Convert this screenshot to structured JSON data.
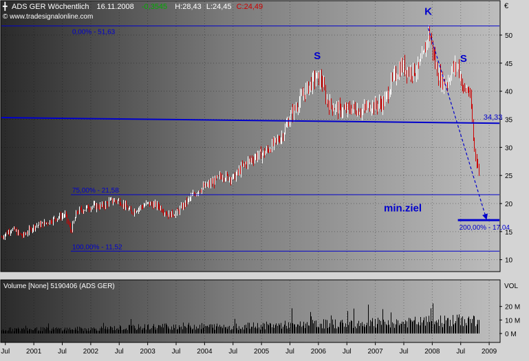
{
  "header": {
    "symbol": "ADS GER Wöchentlich",
    "date": "16.11.2008",
    "change": "-0,3545",
    "high": "H:28,43",
    "low": "L:24,45",
    "close": "C:24,49",
    "currency": "€",
    "source": "© www.tradesignalonline.com"
  },
  "colors": {
    "bull": "#ffffff",
    "bear": "#cc0000",
    "annotation": "#0000cc",
    "change": "#00aa00",
    "close": "#cc0000"
  },
  "chart_data": [
    {
      "type": "bar",
      "subtype": "ohlc-weekly",
      "ylim": [
        8,
        56
      ],
      "yticks": [
        10,
        15,
        20,
        25,
        30,
        35,
        40,
        45,
        50
      ],
      "ytick_labels": [
        "10",
        "15",
        "20",
        "25",
        "30",
        "35",
        "40",
        "45",
        "50"
      ],
      "xlim": [
        2000.43,
        2009.18
      ],
      "xticks": [
        {
          "x": 2000.5,
          "label": "Jul"
        },
        {
          "x": 2001.0,
          "label": "2001"
        },
        {
          "x": 2001.5,
          "label": "Jul"
        },
        {
          "x": 2002.0,
          "label": "2002"
        },
        {
          "x": 2002.5,
          "label": "Jul"
        },
        {
          "x": 2003.0,
          "label": "2003"
        },
        {
          "x": 2003.5,
          "label": "Jul"
        },
        {
          "x": 2004.0,
          "label": "2004"
        },
        {
          "x": 2004.5,
          "label": "Jul"
        },
        {
          "x": 2005.0,
          "label": "2005"
        },
        {
          "x": 2005.5,
          "label": "Jul"
        },
        {
          "x": 2006.0,
          "label": "2006"
        },
        {
          "x": 2006.5,
          "label": "Jul"
        },
        {
          "x": 2007.0,
          "label": "2007"
        },
        {
          "x": 2007.5,
          "label": "Jul"
        },
        {
          "x": 2008.0,
          "label": "2008"
        },
        {
          "x": 2008.5,
          "label": "Jul"
        },
        {
          "x": 2009.0,
          "label": "2009"
        }
      ],
      "price_path": [
        [
          2000.43,
          14.0
        ],
        [
          2000.6,
          15.5
        ],
        [
          2000.8,
          14.2
        ],
        [
          2001.0,
          16.0
        ],
        [
          2001.2,
          16.5
        ],
        [
          2001.4,
          17.5
        ],
        [
          2001.55,
          18.0
        ],
        [
          2001.65,
          15.0
        ],
        [
          2001.75,
          18.5
        ],
        [
          2002.0,
          19.5
        ],
        [
          2002.2,
          19.5
        ],
        [
          2002.35,
          20.5
        ],
        [
          2002.5,
          20.5
        ],
        [
          2002.7,
          18.5
        ],
        [
          2002.9,
          19.5
        ],
        [
          2003.0,
          20.0
        ],
        [
          2003.2,
          19.5
        ],
        [
          2003.35,
          18.0
        ],
        [
          2003.5,
          18.3
        ],
        [
          2003.7,
          20.5
        ],
        [
          2003.9,
          22.5
        ],
        [
          2004.1,
          23.5
        ],
        [
          2004.3,
          25.0
        ],
        [
          2004.5,
          24.5
        ],
        [
          2004.7,
          27.0
        ],
        [
          2004.9,
          28.5
        ],
        [
          2005.05,
          29.0
        ],
        [
          2005.2,
          30.5
        ],
        [
          2005.35,
          32.0
        ],
        [
          2005.5,
          35.5
        ],
        [
          2005.65,
          38.0
        ],
        [
          2005.8,
          40.5
        ],
        [
          2005.95,
          42.5
        ],
        [
          2006.05,
          42.0
        ],
        [
          2006.15,
          38.0
        ],
        [
          2006.3,
          37.0
        ],
        [
          2006.45,
          36.5
        ],
        [
          2006.6,
          37.0
        ],
        [
          2006.75,
          36.5
        ],
        [
          2006.9,
          37.5
        ],
        [
          2007.0,
          37.5
        ],
        [
          2007.15,
          38.0
        ],
        [
          2007.3,
          42.0
        ],
        [
          2007.45,
          44.5
        ],
        [
          2007.6,
          43.5
        ],
        [
          2007.75,
          44.0
        ],
        [
          2007.85,
          46.5
        ],
        [
          2007.93,
          50.5
        ],
        [
          2007.98,
          49.0
        ],
        [
          2008.05,
          44.5
        ],
        [
          2008.15,
          42.0
        ],
        [
          2008.25,
          41.5
        ],
        [
          2008.35,
          44.0
        ],
        [
          2008.45,
          44.5
        ],
        [
          2008.55,
          40.0
        ],
        [
          2008.63,
          40.5
        ],
        [
          2008.68,
          37.0
        ],
        [
          2008.73,
          30.0
        ],
        [
          2008.78,
          27.5
        ],
        [
          2008.82,
          25.0
        ]
      ],
      "horizontal_lines": [
        {
          "y": 51.63,
          "label": "0,00% - 51,63"
        },
        {
          "y": 21.58,
          "label": "75,00% - 21,58"
        },
        {
          "y": 11.52,
          "label": "100,00% - 11,52"
        },
        {
          "y": 17.04,
          "label": "200,00% - 17,04"
        }
      ],
      "neckline": {
        "x1": 2000.43,
        "y1": 35.3,
        "x2": 2009.18,
        "y2": 34.3,
        "label": "34,33"
      },
      "target_arrow": {
        "x1": 2007.93,
        "y1": 51.2,
        "x2": 2008.95,
        "y2": 17.3,
        "label": "min.ziel"
      },
      "pattern_labels": [
        {
          "x": 2005.98,
          "y": 45.7,
          "label": "S"
        },
        {
          "x": 2007.93,
          "y": 53.6,
          "label": "K"
        },
        {
          "x": 2008.55,
          "y": 45.2,
          "label": "S"
        }
      ]
    },
    {
      "type": "bar",
      "subtype": "volume",
      "title": "Volume [None] 5190406 (ADS GER)",
      "ylim": [
        0,
        30
      ],
      "yticks": [
        0,
        10,
        20
      ],
      "ytick_labels": [
        "0 M",
        "10 M",
        "20 M"
      ],
      "axis_label": "VOL",
      "volume_path": [
        [
          2000.43,
          3.0
        ],
        [
          2002.0,
          3.5
        ],
        [
          2003.5,
          5.5
        ],
        [
          2004.5,
          5.0
        ],
        [
          2005.5,
          6.5
        ],
        [
          2006.5,
          7.5
        ],
        [
          2007.5,
          8.0
        ],
        [
          2008.0,
          9.0
        ],
        [
          2008.82,
          10.0
        ]
      ]
    }
  ]
}
